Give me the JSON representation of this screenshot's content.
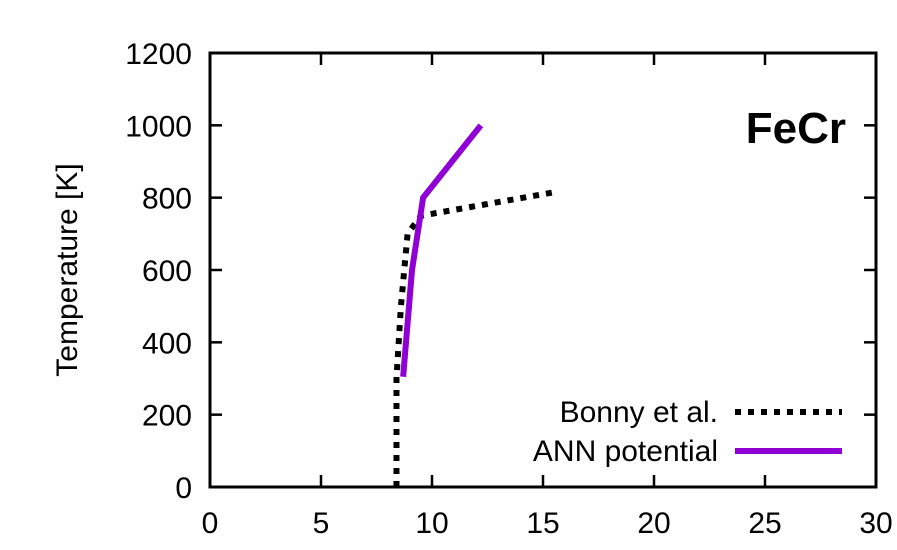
{
  "chart_data": {
    "type": "line",
    "ylabel": "Temperature [K]",
    "xlabel": "",
    "xlim": [
      0,
      30
    ],
    "ylim": [
      0,
      1200
    ],
    "xticks": [
      0,
      5,
      10,
      15,
      20,
      25,
      30
    ],
    "yticks": [
      0,
      200,
      400,
      600,
      800,
      1000,
      1200
    ],
    "grid": false,
    "legend_position": "bottom-right",
    "annotation": "FeCr",
    "series": [
      {
        "name": "Bonny et al.",
        "color": "#000000",
        "style": "dotted",
        "x": [
          8.4,
          8.4,
          8.6,
          8.9,
          9.5,
          15.5
        ],
        "y": [
          0,
          300,
          500,
          700,
          750,
          815
        ]
      },
      {
        "name": "ANN potential",
        "color": "#8f00d4",
        "style": "solid",
        "x": [
          8.7,
          9.1,
          9.6,
          12.2
        ],
        "y": [
          305,
          600,
          800,
          1000
        ]
      }
    ]
  }
}
